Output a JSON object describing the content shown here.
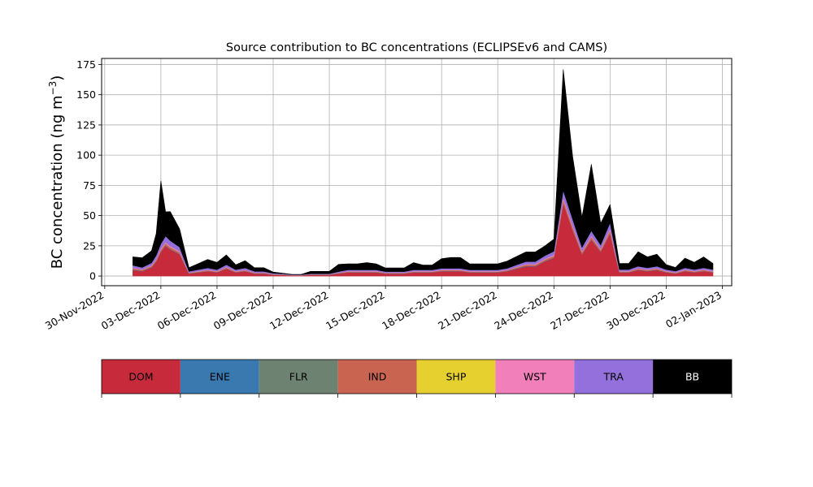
{
  "chart_data": {
    "type": "area",
    "title": "Source contribution to BC concentrations (ECLIPSEv6 and CAMS)",
    "ylabel": "BC concentration (ng m",
    "ylabel_sup": "−3",
    "ylabel_close": ")",
    "xlabel": "",
    "x_axis_type": "date",
    "xlim": [
      "2022-11-29T20:00",
      "2023-01-02T12:00"
    ],
    "ylim": [
      -8,
      180
    ],
    "grid": true,
    "yticks": [
      0,
      25,
      50,
      75,
      100,
      125,
      150,
      175
    ],
    "xticks": [
      "2022-11-30",
      "2022-12-03",
      "2022-12-06",
      "2022-12-09",
      "2022-12-12",
      "2022-12-15",
      "2022-12-18",
      "2022-12-21",
      "2022-12-24",
      "2022-12-27",
      "2022-12-30",
      "2023-01-02"
    ],
    "xtick_labels": [
      "30-Nov-2022",
      "03-Dec-2022",
      "06-Dec-2022",
      "09-Dec-2022",
      "12-Dec-2022",
      "15-Dec-2022",
      "18-Dec-2022",
      "21-Dec-2022",
      "24-Dec-2022",
      "27-Dec-2022",
      "30-Dec-2022",
      "02-Jan-2023"
    ],
    "colors": {
      "DOM": "#c62a3b",
      "ENE": "#3a78b0",
      "FLR": "#6e8272",
      "IND": "#c86450",
      "SHP": "#e6d030",
      "WST": "#f07fba",
      "TRA": "#9370db",
      "BB": "#000000"
    },
    "x": [
      "2022-12-01T12:00",
      "2022-12-02T00:00",
      "2022-12-02T12:00",
      "2022-12-02T18:00",
      "2022-12-03T00:00",
      "2022-12-03T06:00",
      "2022-12-03T12:00",
      "2022-12-04T00:00",
      "2022-12-04T12:00",
      "2022-12-05T00:00",
      "2022-12-05T12:00",
      "2022-12-06T00:00",
      "2022-12-06T12:00",
      "2022-12-07T00:00",
      "2022-12-07T12:00",
      "2022-12-08T00:00",
      "2022-12-08T12:00",
      "2022-12-09T00:00",
      "2022-12-09T12:00",
      "2022-12-10T00:00",
      "2022-12-10T12:00",
      "2022-12-11T00:00",
      "2022-12-11T12:00",
      "2022-12-12T00:00",
      "2022-12-12T12:00",
      "2022-12-13T00:00",
      "2022-12-13T12:00",
      "2022-12-14T00:00",
      "2022-12-14T12:00",
      "2022-12-15T00:00",
      "2022-12-15T12:00",
      "2022-12-16T00:00",
      "2022-12-16T12:00",
      "2022-12-17T00:00",
      "2022-12-17T12:00",
      "2022-12-18T00:00",
      "2022-12-18T12:00",
      "2022-12-19T00:00",
      "2022-12-19T12:00",
      "2022-12-20T00:00",
      "2022-12-20T12:00",
      "2022-12-21T00:00",
      "2022-12-21T12:00",
      "2022-12-22T00:00",
      "2022-12-22T12:00",
      "2022-12-23T00:00",
      "2022-12-23T12:00",
      "2022-12-24T00:00",
      "2022-12-24T12:00",
      "2022-12-25T00:00",
      "2022-12-25T12:00",
      "2022-12-26T00:00",
      "2022-12-26T12:00",
      "2022-12-27T00:00",
      "2022-12-27T12:00",
      "2022-12-28T00:00",
      "2022-12-28T12:00",
      "2022-12-29T00:00",
      "2022-12-29T12:00",
      "2022-12-30T00:00",
      "2022-12-30T12:00",
      "2022-12-31T00:00",
      "2022-12-31T12:00",
      "2023-01-01T00:00",
      "2023-01-01T12:00"
    ],
    "series": [
      {
        "name": "DOM",
        "values": [
          5,
          4,
          7,
          12,
          20,
          25,
          22,
          18,
          2,
          3,
          4,
          3,
          6,
          3,
          4,
          2,
          2,
          1,
          1,
          0.5,
          0.5,
          1,
          1,
          1,
          2,
          3,
          3,
          3,
          3,
          2,
          2,
          2,
          3,
          3,
          3,
          4,
          4,
          4,
          3,
          3,
          3,
          3,
          4,
          6,
          8,
          8,
          12,
          15,
          60,
          38,
          18,
          30,
          20,
          35,
          3,
          3,
          5,
          4,
          5,
          3,
          2,
          4,
          3,
          4,
          3
        ]
      },
      {
        "name": "ENE",
        "values": [
          0.3,
          0.3,
          0.3,
          0.3,
          0.3,
          0.3,
          0.3,
          0.3,
          0.2,
          0.2,
          0.2,
          0.2,
          0.2,
          0.2,
          0.2,
          0.2,
          0.2,
          0.1,
          0.1,
          0.1,
          0.1,
          0.1,
          0.1,
          0.1,
          0.2,
          0.2,
          0.2,
          0.2,
          0.2,
          0.2,
          0.2,
          0.2,
          0.2,
          0.2,
          0.2,
          0.2,
          0.2,
          0.2,
          0.2,
          0.2,
          0.2,
          0.2,
          0.2,
          0.3,
          0.3,
          0.3,
          0.3,
          0.3,
          0.3,
          0.3,
          0.3,
          0.3,
          0.3,
          0.3,
          0.2,
          0.2,
          0.2,
          0.2,
          0.2,
          0.2,
          0.2,
          0.2,
          0.2,
          0.2,
          0.2
        ]
      },
      {
        "name": "FLR",
        "values": [
          0.1,
          0.1,
          0.1,
          0.1,
          0.1,
          0.1,
          0.1,
          0.1,
          0.1,
          0.1,
          0.1,
          0.1,
          0.1,
          0.1,
          0.1,
          0.1,
          0.1,
          0.1,
          0.1,
          0.1,
          0.1,
          0.1,
          0.1,
          0.1,
          0.1,
          0.1,
          0.1,
          0.1,
          0.1,
          0.1,
          0.1,
          0.1,
          0.1,
          0.1,
          0.1,
          0.1,
          0.1,
          0.1,
          0.1,
          0.1,
          0.1,
          0.1,
          0.1,
          0.1,
          0.1,
          0.1,
          0.1,
          0.1,
          0.1,
          0.1,
          0.1,
          0.1,
          0.1,
          0.1,
          0.1,
          0.1,
          0.1,
          0.1,
          0.1,
          0.1,
          0.1,
          0.1,
          0.1,
          0.1,
          0.1
        ]
      },
      {
        "name": "IND",
        "values": [
          1,
          0.8,
          1,
          1.2,
          1.5,
          1.8,
          1.6,
          1.4,
          0.4,
          0.5,
          0.6,
          0.5,
          0.8,
          0.5,
          0.6,
          0.4,
          0.4,
          0.3,
          0.2,
          0.1,
          0.1,
          0.2,
          0.2,
          0.2,
          0.4,
          0.5,
          0.5,
          0.5,
          0.5,
          0.4,
          0.4,
          0.4,
          0.5,
          0.5,
          0.5,
          0.6,
          0.6,
          0.6,
          0.5,
          0.5,
          0.5,
          0.5,
          0.6,
          0.8,
          1,
          1,
          1.2,
          1.4,
          3,
          2.5,
          1.5,
          2,
          1.5,
          2.5,
          0.6,
          0.6,
          0.8,
          0.7,
          0.8,
          0.6,
          0.5,
          0.7,
          0.6,
          0.7,
          0.6
        ]
      },
      {
        "name": "SHP",
        "values": [
          0,
          0,
          0,
          0,
          0,
          0,
          0,
          0,
          0,
          0,
          0,
          0,
          0,
          0,
          0,
          0,
          0,
          0,
          0,
          0,
          0,
          0,
          0,
          0,
          0,
          0,
          0,
          0,
          0,
          0,
          0,
          0,
          0,
          0,
          0,
          0,
          0,
          0,
          0,
          0,
          0,
          0,
          0,
          0,
          0,
          0,
          0,
          0,
          0,
          0,
          0,
          0,
          0,
          0,
          0,
          0,
          0,
          0,
          0,
          0,
          0,
          0,
          0,
          0,
          0
        ]
      },
      {
        "name": "WST",
        "values": [
          0.5,
          0.4,
          0.5,
          0.6,
          0.8,
          0.9,
          0.8,
          0.7,
          0.2,
          0.3,
          0.3,
          0.3,
          0.4,
          0.3,
          0.3,
          0.2,
          0.2,
          0.2,
          0.1,
          0.1,
          0.1,
          0.1,
          0.1,
          0.1,
          0.2,
          0.3,
          0.3,
          0.3,
          0.3,
          0.2,
          0.2,
          0.2,
          0.3,
          0.3,
          0.3,
          0.3,
          0.3,
          0.3,
          0.3,
          0.3,
          0.3,
          0.3,
          0.3,
          0.4,
          0.5,
          0.5,
          0.6,
          0.7,
          1.5,
          1.2,
          0.8,
          1,
          0.8,
          1.2,
          0.3,
          0.3,
          0.4,
          0.4,
          0.4,
          0.3,
          0.3,
          0.4,
          0.3,
          0.4,
          0.3
        ]
      },
      {
        "name": "TRA",
        "values": [
          2,
          1.5,
          2,
          3,
          4,
          5,
          4.5,
          3.5,
          1,
          1.2,
          1.5,
          1.2,
          2,
          1.2,
          1.5,
          1,
          1,
          0.6,
          0.4,
          0.3,
          0.3,
          0.4,
          0.4,
          0.4,
          0.8,
          1,
          1,
          1,
          1,
          0.8,
          0.8,
          0.8,
          1,
          1,
          1,
          1.2,
          1.2,
          1.2,
          1,
          1,
          1,
          1,
          1.2,
          1.6,
          2,
          2,
          2.5,
          3,
          6,
          5,
          3,
          4,
          3,
          5,
          1.2,
          1.2,
          1.6,
          1.4,
          1.6,
          1.2,
          1,
          1.4,
          1.2,
          1.4,
          1.2
        ]
      },
      {
        "name": "BB",
        "values": [
          7,
          8,
          10,
          18,
          52,
          20,
          24,
          15,
          3,
          5,
          7,
          6,
          8,
          4,
          6,
          3,
          3,
          1,
          0.5,
          0.2,
          0.2,
          2,
          2,
          2,
          6,
          5,
          5,
          6,
          5,
          3,
          3,
          3,
          6,
          4,
          4,
          8,
          9,
          9,
          5,
          5,
          5,
          5,
          6,
          7,
          8,
          8,
          8,
          10,
          100,
          52,
          25,
          55,
          18,
          15,
          5,
          5,
          12,
          9,
          10,
          4,
          3,
          8,
          6,
          9,
          5
        ]
      }
    ],
    "legend": [
      {
        "label": "DOM",
        "color": "#c62a3b",
        "text_color": "#000000"
      },
      {
        "label": "ENE",
        "color": "#3a78b0",
        "text_color": "#000000"
      },
      {
        "label": "FLR",
        "color": "#6e8272",
        "text_color": "#000000"
      },
      {
        "label": "IND",
        "color": "#c86450",
        "text_color": "#000000"
      },
      {
        "label": "SHP",
        "color": "#e6d030",
        "text_color": "#000000"
      },
      {
        "label": "WST",
        "color": "#f07fba",
        "text_color": "#000000"
      },
      {
        "label": "TRA",
        "color": "#9370db",
        "text_color": "#000000"
      },
      {
        "label": "BB",
        "color": "#000000",
        "text_color": "#ffffff"
      }
    ],
    "legend_placement": "bottom"
  }
}
